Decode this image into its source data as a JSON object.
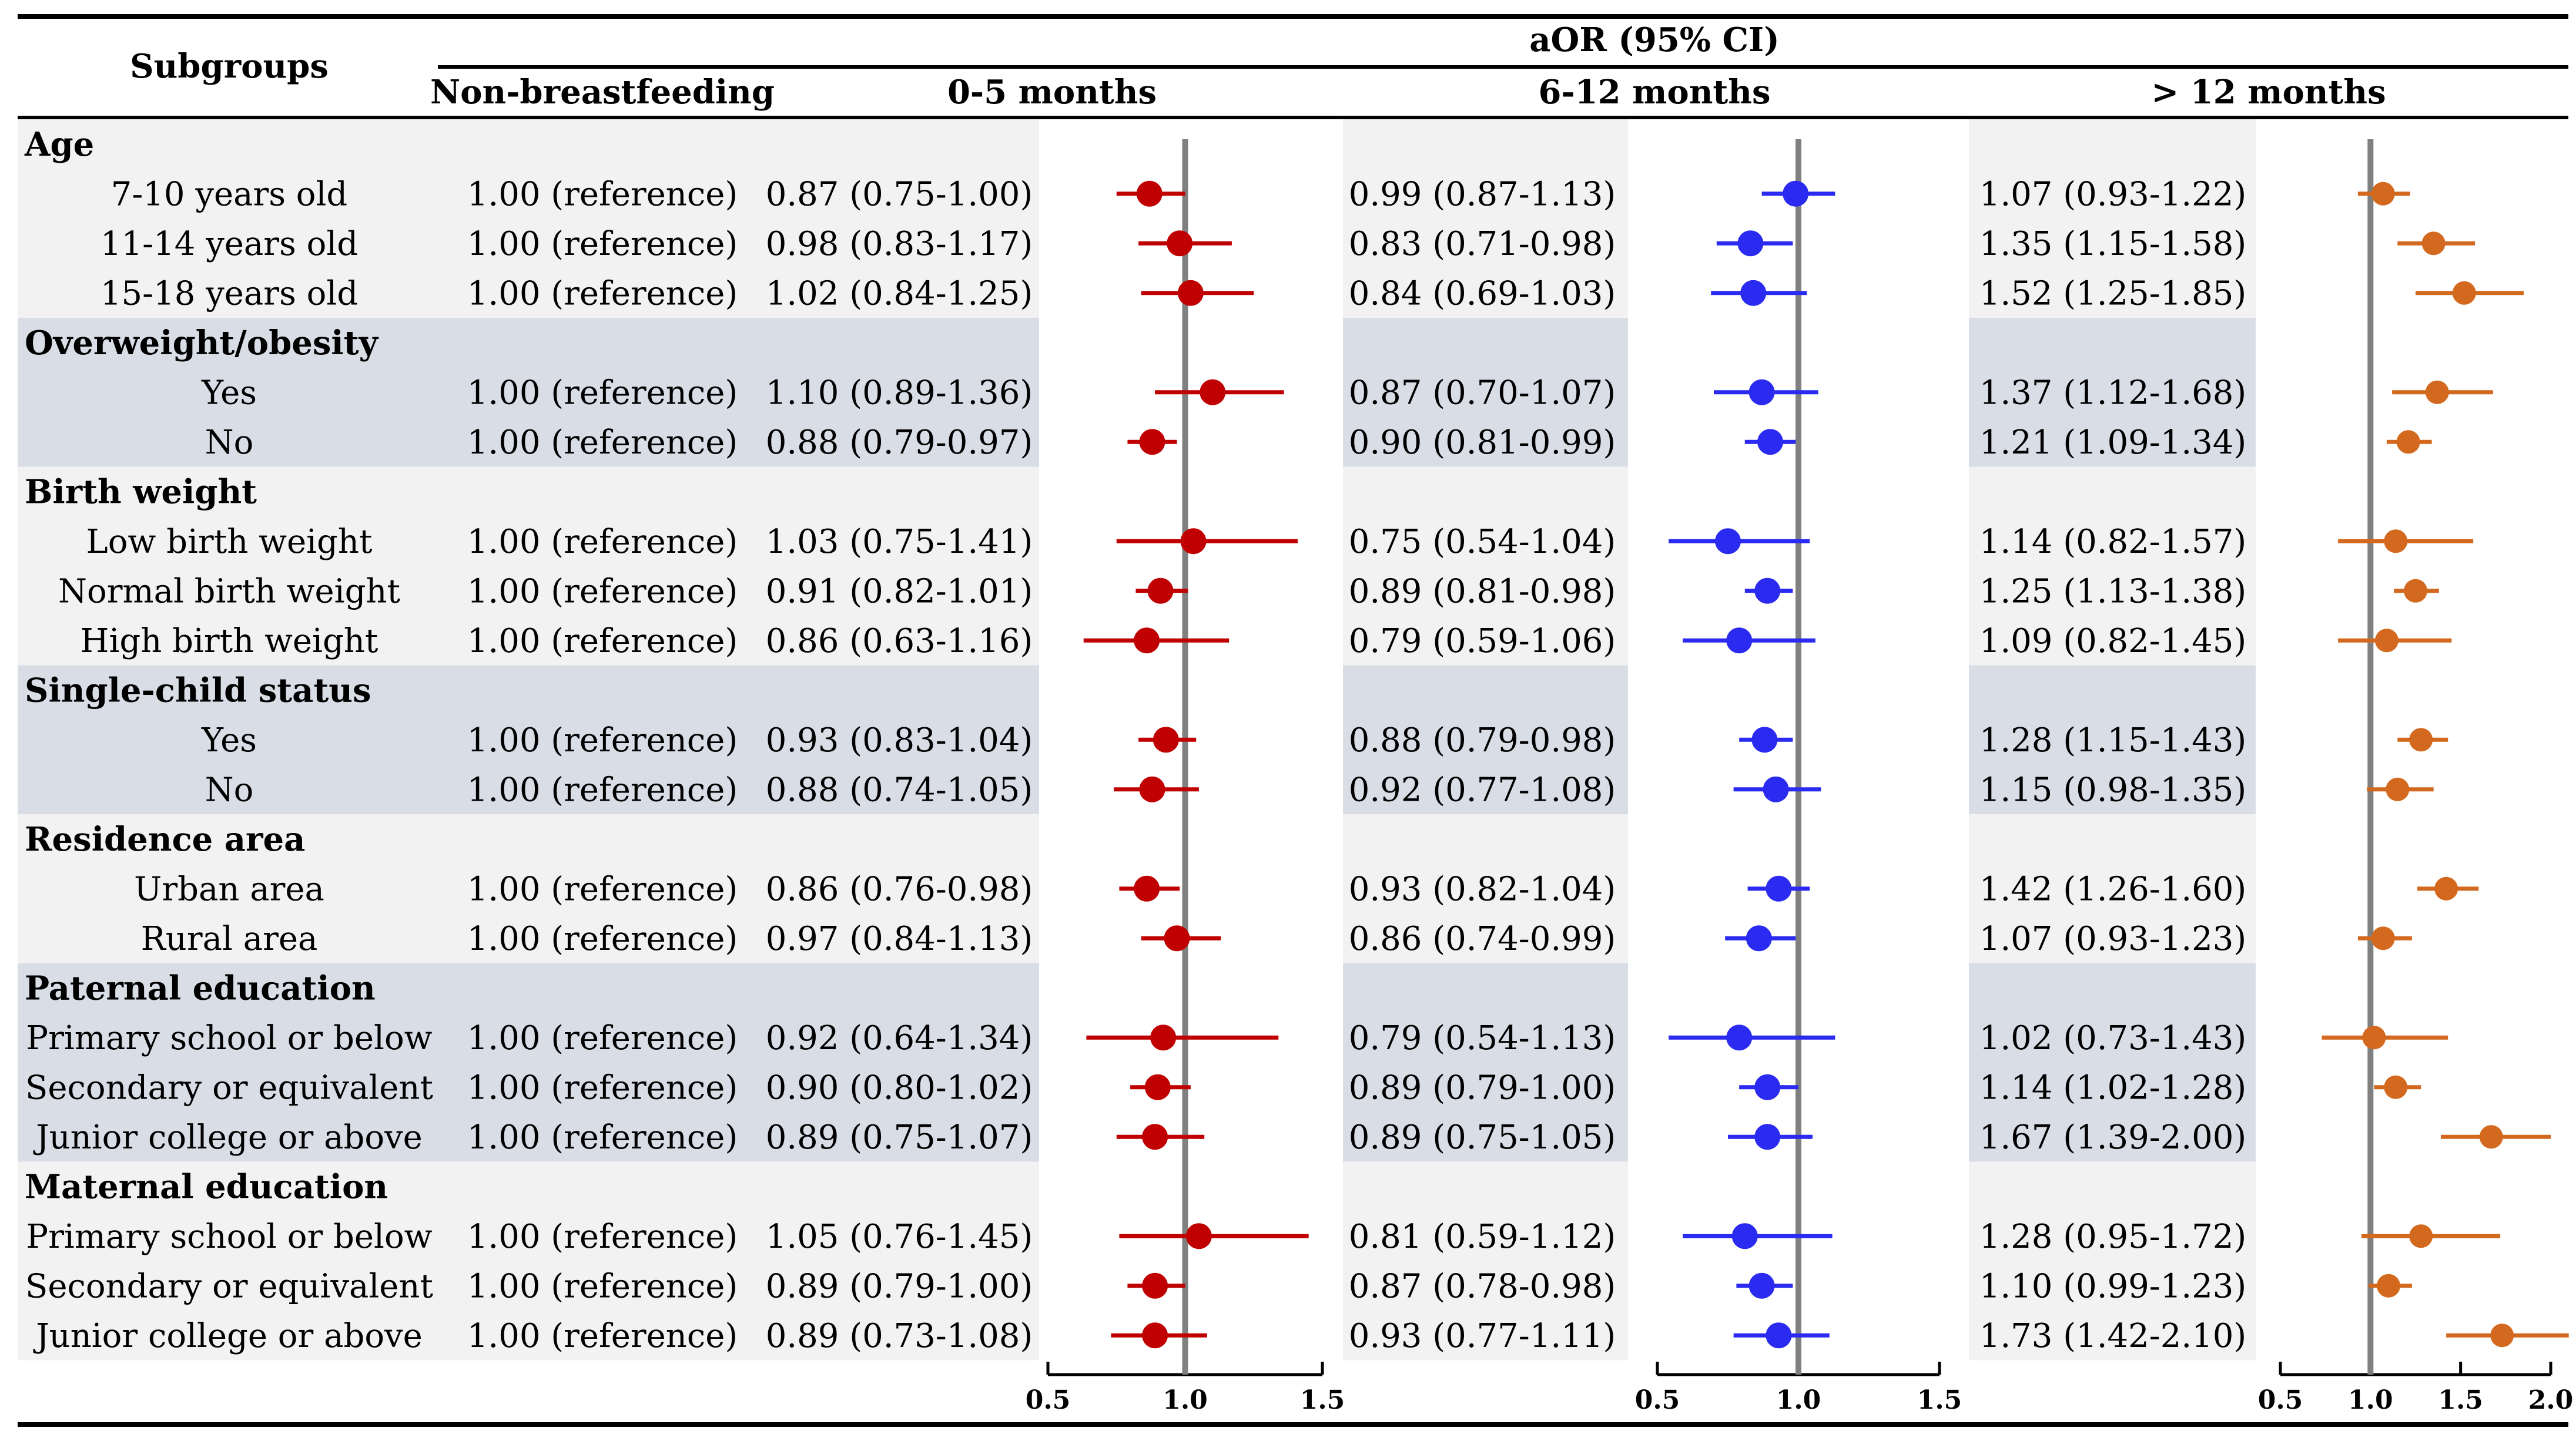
{
  "header": {
    "subgroups_label": "Subgroups",
    "aor_label": "aOR (95% CI)",
    "col_nonbf": "Non-breastfeeding",
    "col_0_5": "0-5 months",
    "col_6_12": "6-12 months",
    "col_12plus": "> 12 months"
  },
  "reference_text": "1.00 (reference)",
  "groups": [
    {
      "title": "Age",
      "shaded": false,
      "rows": [
        {
          "label": "7-10 years old",
          "ci_0_5": "0.87 (0.75-1.00)",
          "ci_6_12": "0.99 (0.87-1.13)",
          "ci_12plus": "1.07 (0.93-1.22)"
        },
        {
          "label": "11-14 years old",
          "ci_0_5": "0.98 (0.83-1.17)",
          "ci_6_12": "0.83 (0.71-0.98)",
          "ci_12plus": "1.35 (1.15-1.58)"
        },
        {
          "label": "15-18 years old",
          "ci_0_5": "1.02 (0.84-1.25)",
          "ci_6_12": "0.84 (0.69-1.03)",
          "ci_12plus": "1.52 (1.25-1.85)"
        }
      ]
    },
    {
      "title": "Overweight/obesity",
      "shaded": true,
      "rows": [
        {
          "label": "Yes",
          "ci_0_5": "1.10 (0.89-1.36)",
          "ci_6_12": "0.87 (0.70-1.07)",
          "ci_12plus": "1.37 (1.12-1.68)"
        },
        {
          "label": "No",
          "ci_0_5": "0.88 (0.79-0.97)",
          "ci_6_12": "0.90 (0.81-0.99)",
          "ci_12plus": "1.21 (1.09-1.34)"
        }
      ]
    },
    {
      "title": "Birth weight",
      "shaded": false,
      "rows": [
        {
          "label": "Low birth weight",
          "ci_0_5": "1.03 (0.75-1.41)",
          "ci_6_12": "0.75 (0.54-1.04)",
          "ci_12plus": "1.14 (0.82-1.57)"
        },
        {
          "label": "Normal birth weight",
          "ci_0_5": "0.91 (0.82-1.01)",
          "ci_6_12": "0.89 (0.81-0.98)",
          "ci_12plus": "1.25 (1.13-1.38)"
        },
        {
          "label": "High birth weight",
          "ci_0_5": "0.86 (0.63-1.16)",
          "ci_6_12": "0.79 (0.59-1.06)",
          "ci_12plus": "1.09 (0.82-1.45)"
        }
      ]
    },
    {
      "title": "Single-child status",
      "shaded": true,
      "rows": [
        {
          "label": "Yes",
          "ci_0_5": "0.93 (0.83-1.04)",
          "ci_6_12": "0.88 (0.79-0.98)",
          "ci_12plus": "1.28 (1.15-1.43)"
        },
        {
          "label": "No",
          "ci_0_5": "0.88 (0.74-1.05)",
          "ci_6_12": "0.92 (0.77-1.08)",
          "ci_12plus": "1.15 (0.98-1.35)"
        }
      ]
    },
    {
      "title": "Residence area",
      "shaded": false,
      "rows": [
        {
          "label": "Urban area",
          "ci_0_5": "0.86 (0.76-0.98)",
          "ci_6_12": "0.93 (0.82-1.04)",
          "ci_12plus": "1.42 (1.26-1.60)"
        },
        {
          "label": "Rural area",
          "ci_0_5": "0.97 (0.84-1.13)",
          "ci_6_12": "0.86 (0.74-0.99)",
          "ci_12plus": "1.07 (0.93-1.23)"
        }
      ]
    },
    {
      "title": "Paternal education",
      "shaded": true,
      "rows": [
        {
          "label": "Primary school or below",
          "ci_0_5": "0.92 (0.64-1.34)",
          "ci_6_12": "0.79 (0.54-1.13)",
          "ci_12plus": "1.02 (0.73-1.43)"
        },
        {
          "label": "Secondary or equivalent",
          "ci_0_5": "0.90 (0.80-1.02)",
          "ci_6_12": "0.89 (0.79-1.00)",
          "ci_12plus": "1.14 (1.02-1.28)"
        },
        {
          "label": "Junior college or above",
          "ci_0_5": "0.89 (0.75-1.07)",
          "ci_6_12": "0.89 (0.75-1.05)",
          "ci_12plus": "1.67 (1.39-2.00)"
        }
      ]
    },
    {
      "title": "Maternal education",
      "shaded": false,
      "rows": [
        {
          "label": "Primary school or below",
          "ci_0_5": "1.05 (0.76-1.45)",
          "ci_6_12": "0.81 (0.59-1.12)",
          "ci_12plus": "1.28 (0.95-1.72)"
        },
        {
          "label": "Secondary or equivalent",
          "ci_0_5": "0.89 (0.79-1.00)",
          "ci_6_12": "0.87 (0.78-0.98)",
          "ci_12plus": "1.10 (0.99-1.23)"
        },
        {
          "label": "Junior college or above",
          "ci_0_5": "0.89 (0.73-1.08)",
          "ci_6_12": "0.93 (0.77-1.11)",
          "ci_12plus": "1.73 (1.42-2.10)"
        }
      ]
    }
  ],
  "colors": {
    "series_0_5": "#c00000",
    "series_6_12": "#2a2af0",
    "series_12plus": "#d2691e",
    "shade_light": "#f2f2f2",
    "shade_dark": "#d9dde6",
    "ref_line": "#808080"
  },
  "chart_data": [
    {
      "type": "forest",
      "name": "0-5 months",
      "xlim": [
        0.5,
        1.5
      ],
      "reference_value": 1.0,
      "ticks": [
        "0.5",
        "1.0",
        "1.5"
      ],
      "points": [
        {
          "or": 0.87,
          "lo": 0.75,
          "hi": 1.0
        },
        {
          "or": 0.98,
          "lo": 0.83,
          "hi": 1.17
        },
        {
          "or": 1.02,
          "lo": 0.84,
          "hi": 1.25
        },
        {
          "or": 1.1,
          "lo": 0.89,
          "hi": 1.36
        },
        {
          "or": 0.88,
          "lo": 0.79,
          "hi": 0.97
        },
        {
          "or": 1.03,
          "lo": 0.75,
          "hi": 1.41
        },
        {
          "or": 0.91,
          "lo": 0.82,
          "hi": 1.01
        },
        {
          "or": 0.86,
          "lo": 0.63,
          "hi": 1.16
        },
        {
          "or": 0.93,
          "lo": 0.83,
          "hi": 1.04
        },
        {
          "or": 0.88,
          "lo": 0.74,
          "hi": 1.05
        },
        {
          "or": 0.86,
          "lo": 0.76,
          "hi": 0.98
        },
        {
          "or": 0.97,
          "lo": 0.84,
          "hi": 1.13
        },
        {
          "or": 0.92,
          "lo": 0.64,
          "hi": 1.34
        },
        {
          "or": 0.9,
          "lo": 0.8,
          "hi": 1.02
        },
        {
          "or": 0.89,
          "lo": 0.75,
          "hi": 1.07
        },
        {
          "or": 1.05,
          "lo": 0.76,
          "hi": 1.45
        },
        {
          "or": 0.89,
          "lo": 0.79,
          "hi": 1.0
        },
        {
          "or": 0.89,
          "lo": 0.73,
          "hi": 1.08
        }
      ]
    },
    {
      "type": "forest",
      "name": "6-12 months",
      "xlim": [
        0.5,
        1.5
      ],
      "reference_value": 1.0,
      "ticks": [
        "0.5",
        "1.0",
        "1.5"
      ],
      "points": [
        {
          "or": 0.99,
          "lo": 0.87,
          "hi": 1.13
        },
        {
          "or": 0.83,
          "lo": 0.71,
          "hi": 0.98
        },
        {
          "or": 0.84,
          "lo": 0.69,
          "hi": 1.03
        },
        {
          "or": 0.87,
          "lo": 0.7,
          "hi": 1.07
        },
        {
          "or": 0.9,
          "lo": 0.81,
          "hi": 0.99
        },
        {
          "or": 0.75,
          "lo": 0.54,
          "hi": 1.04
        },
        {
          "or": 0.89,
          "lo": 0.81,
          "hi": 0.98
        },
        {
          "or": 0.79,
          "lo": 0.59,
          "hi": 1.06
        },
        {
          "or": 0.88,
          "lo": 0.79,
          "hi": 0.98
        },
        {
          "or": 0.92,
          "lo": 0.77,
          "hi": 1.08
        },
        {
          "or": 0.93,
          "lo": 0.82,
          "hi": 1.04
        },
        {
          "or": 0.86,
          "lo": 0.74,
          "hi": 0.99
        },
        {
          "or": 0.79,
          "lo": 0.54,
          "hi": 1.13
        },
        {
          "or": 0.89,
          "lo": 0.79,
          "hi": 1.0
        },
        {
          "or": 0.89,
          "lo": 0.75,
          "hi": 1.05
        },
        {
          "or": 0.81,
          "lo": 0.59,
          "hi": 1.12
        },
        {
          "or": 0.87,
          "lo": 0.78,
          "hi": 0.98
        },
        {
          "or": 0.93,
          "lo": 0.77,
          "hi": 1.11
        }
      ]
    },
    {
      "type": "forest",
      "name": "> 12 months",
      "xlim": [
        0.5,
        2.0
      ],
      "reference_value": 1.0,
      "ticks": [
        "0.5",
        "1.0",
        "1.5",
        "2.0"
      ],
      "points": [
        {
          "or": 1.07,
          "lo": 0.93,
          "hi": 1.22
        },
        {
          "or": 1.35,
          "lo": 1.15,
          "hi": 1.58
        },
        {
          "or": 1.52,
          "lo": 1.25,
          "hi": 1.85
        },
        {
          "or": 1.37,
          "lo": 1.12,
          "hi": 1.68
        },
        {
          "or": 1.21,
          "lo": 1.09,
          "hi": 1.34
        },
        {
          "or": 1.14,
          "lo": 0.82,
          "hi": 1.57
        },
        {
          "or": 1.25,
          "lo": 1.13,
          "hi": 1.38
        },
        {
          "or": 1.09,
          "lo": 0.82,
          "hi": 1.45
        },
        {
          "or": 1.28,
          "lo": 1.15,
          "hi": 1.43
        },
        {
          "or": 1.15,
          "lo": 0.98,
          "hi": 1.35
        },
        {
          "or": 1.42,
          "lo": 1.26,
          "hi": 1.6
        },
        {
          "or": 1.07,
          "lo": 0.93,
          "hi": 1.23
        },
        {
          "or": 1.02,
          "lo": 0.73,
          "hi": 1.43
        },
        {
          "or": 1.14,
          "lo": 1.02,
          "hi": 1.28
        },
        {
          "or": 1.67,
          "lo": 1.39,
          "hi": 2.0
        },
        {
          "or": 1.28,
          "lo": 0.95,
          "hi": 1.72
        },
        {
          "or": 1.1,
          "lo": 0.99,
          "hi": 1.23
        },
        {
          "or": 1.73,
          "lo": 1.42,
          "hi": 2.1
        }
      ]
    }
  ]
}
